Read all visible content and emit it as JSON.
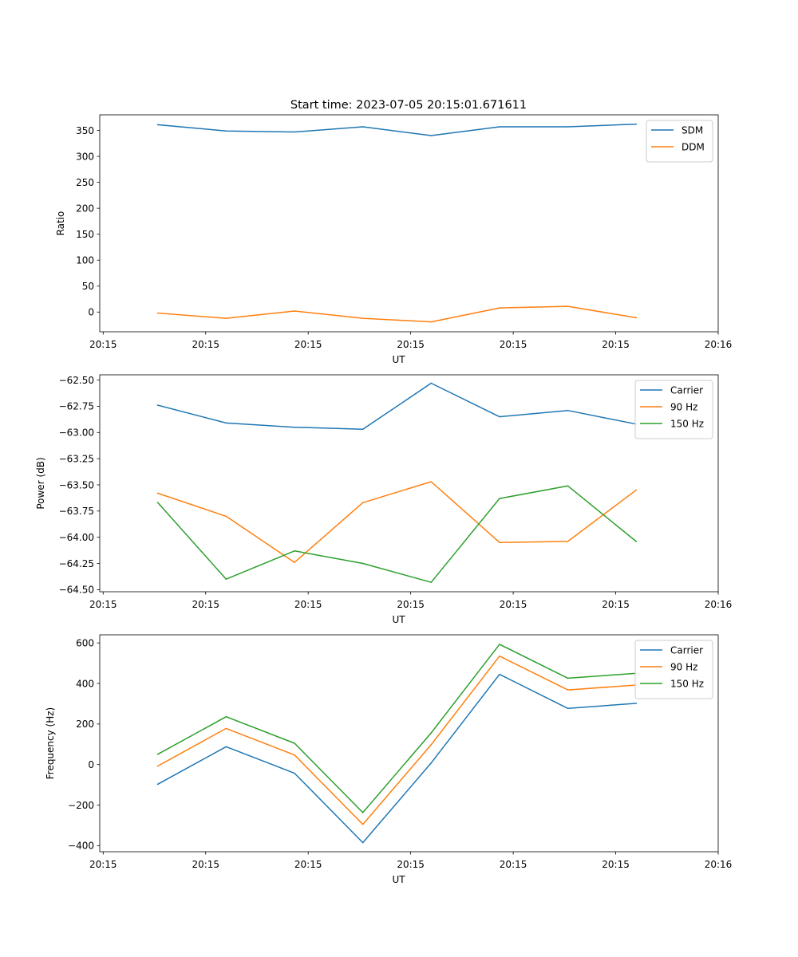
{
  "figure": {
    "suptitle": "Start time: 2023-07-05 20:15:01.671611"
  },
  "chart_data": [
    {
      "type": "line",
      "title": "",
      "xlabel": "UT",
      "ylabel": "Ratio",
      "x_tick_labels": [
        "20:15",
        "20:15",
        "20:15",
        "20:15",
        "20:15",
        "20:15",
        "20:16"
      ],
      "y_ticks": [
        0,
        50,
        100,
        150,
        200,
        250,
        300,
        350
      ],
      "y_tick_labels": [
        "0",
        "50",
        "100",
        "150",
        "200",
        "250",
        "300",
        "350"
      ],
      "ylim": [
        -38,
        380
      ],
      "x": [
        1,
        2,
        3,
        4,
        5,
        6,
        7,
        8
      ],
      "xlim": [
        0.15,
        9.2
      ],
      "x_ticks": [
        0.2,
        1.7,
        3.2,
        4.7,
        6.2,
        7.7,
        9.2
      ],
      "legend_position": "top-right",
      "series": [
        {
          "name": "SDM",
          "color": "#1f77b4",
          "values": [
            361,
            349,
            347,
            357,
            340,
            357,
            357,
            362
          ]
        },
        {
          "name": "DDM",
          "color": "#ff7f0e",
          "values": [
            -2,
            -12,
            2,
            -12,
            -19,
            8,
            11,
            -11
          ]
        }
      ]
    },
    {
      "type": "line",
      "title": "",
      "xlabel": "UT",
      "ylabel": "Power (dB)",
      "x_tick_labels": [
        "20:15",
        "20:15",
        "20:15",
        "20:15",
        "20:15",
        "20:15",
        "20:16"
      ],
      "y_ticks": [
        -64.5,
        -64.25,
        -64.0,
        -63.75,
        -63.5,
        -63.25,
        -63.0,
        -62.75,
        -62.5
      ],
      "y_tick_labels": [
        "−64.50",
        "−64.25",
        "−64.00",
        "−63.75",
        "−63.50",
        "−63.25",
        "−63.00",
        "−62.75",
        "−62.50"
      ],
      "ylim": [
        -64.52,
        -62.45
      ],
      "x": [
        1,
        2,
        3,
        4,
        5,
        6,
        7,
        8
      ],
      "xlim": [
        0.15,
        9.2
      ],
      "x_ticks": [
        0.2,
        1.7,
        3.2,
        4.7,
        6.2,
        7.7,
        9.2
      ],
      "legend_position": "top-right",
      "series": [
        {
          "name": "Carrier",
          "color": "#1f77b4",
          "values": [
            -62.74,
            -62.91,
            -62.95,
            -62.97,
            -62.53,
            -62.85,
            -62.79,
            -62.92
          ]
        },
        {
          "name": "90 Hz",
          "color": "#ff7f0e",
          "values": [
            -63.58,
            -63.8,
            -64.24,
            -63.67,
            -63.47,
            -64.05,
            -64.04,
            -63.55
          ]
        },
        {
          "name": "150 Hz",
          "color": "#2ca02c",
          "values": [
            -63.67,
            -64.4,
            -64.13,
            -64.25,
            -64.43,
            -63.63,
            -63.51,
            -64.04
          ]
        }
      ]
    },
    {
      "type": "line",
      "title": "",
      "xlabel": "UT",
      "ylabel": "Frequency (Hz)",
      "x_tick_labels": [
        "20:15",
        "20:15",
        "20:15",
        "20:15",
        "20:15",
        "20:15",
        "20:16"
      ],
      "y_ticks": [
        -400,
        -200,
        0,
        200,
        400,
        600
      ],
      "y_tick_labels": [
        "−400",
        "−200",
        "0",
        "200",
        "400",
        "600"
      ],
      "ylim": [
        -430,
        640
      ],
      "x": [
        1,
        2,
        3,
        4,
        5,
        6,
        7,
        8
      ],
      "xlim": [
        0.15,
        9.2
      ],
      "x_ticks": [
        0.2,
        1.7,
        3.2,
        4.7,
        6.2,
        7.7,
        9.2
      ],
      "legend_position": "top-right",
      "series": [
        {
          "name": "Carrier",
          "color": "#1f77b4",
          "values": [
            -97,
            88,
            -43,
            -385,
            8,
            445,
            277,
            302
          ]
        },
        {
          "name": "90 Hz",
          "color": "#ff7f0e",
          "values": [
            -7,
            178,
            47,
            -295,
            98,
            535,
            368,
            392
          ]
        },
        {
          "name": "150 Hz",
          "color": "#2ca02c",
          "values": [
            51,
            236,
            105,
            -237,
            156,
            593,
            426,
            450
          ]
        }
      ]
    }
  ]
}
